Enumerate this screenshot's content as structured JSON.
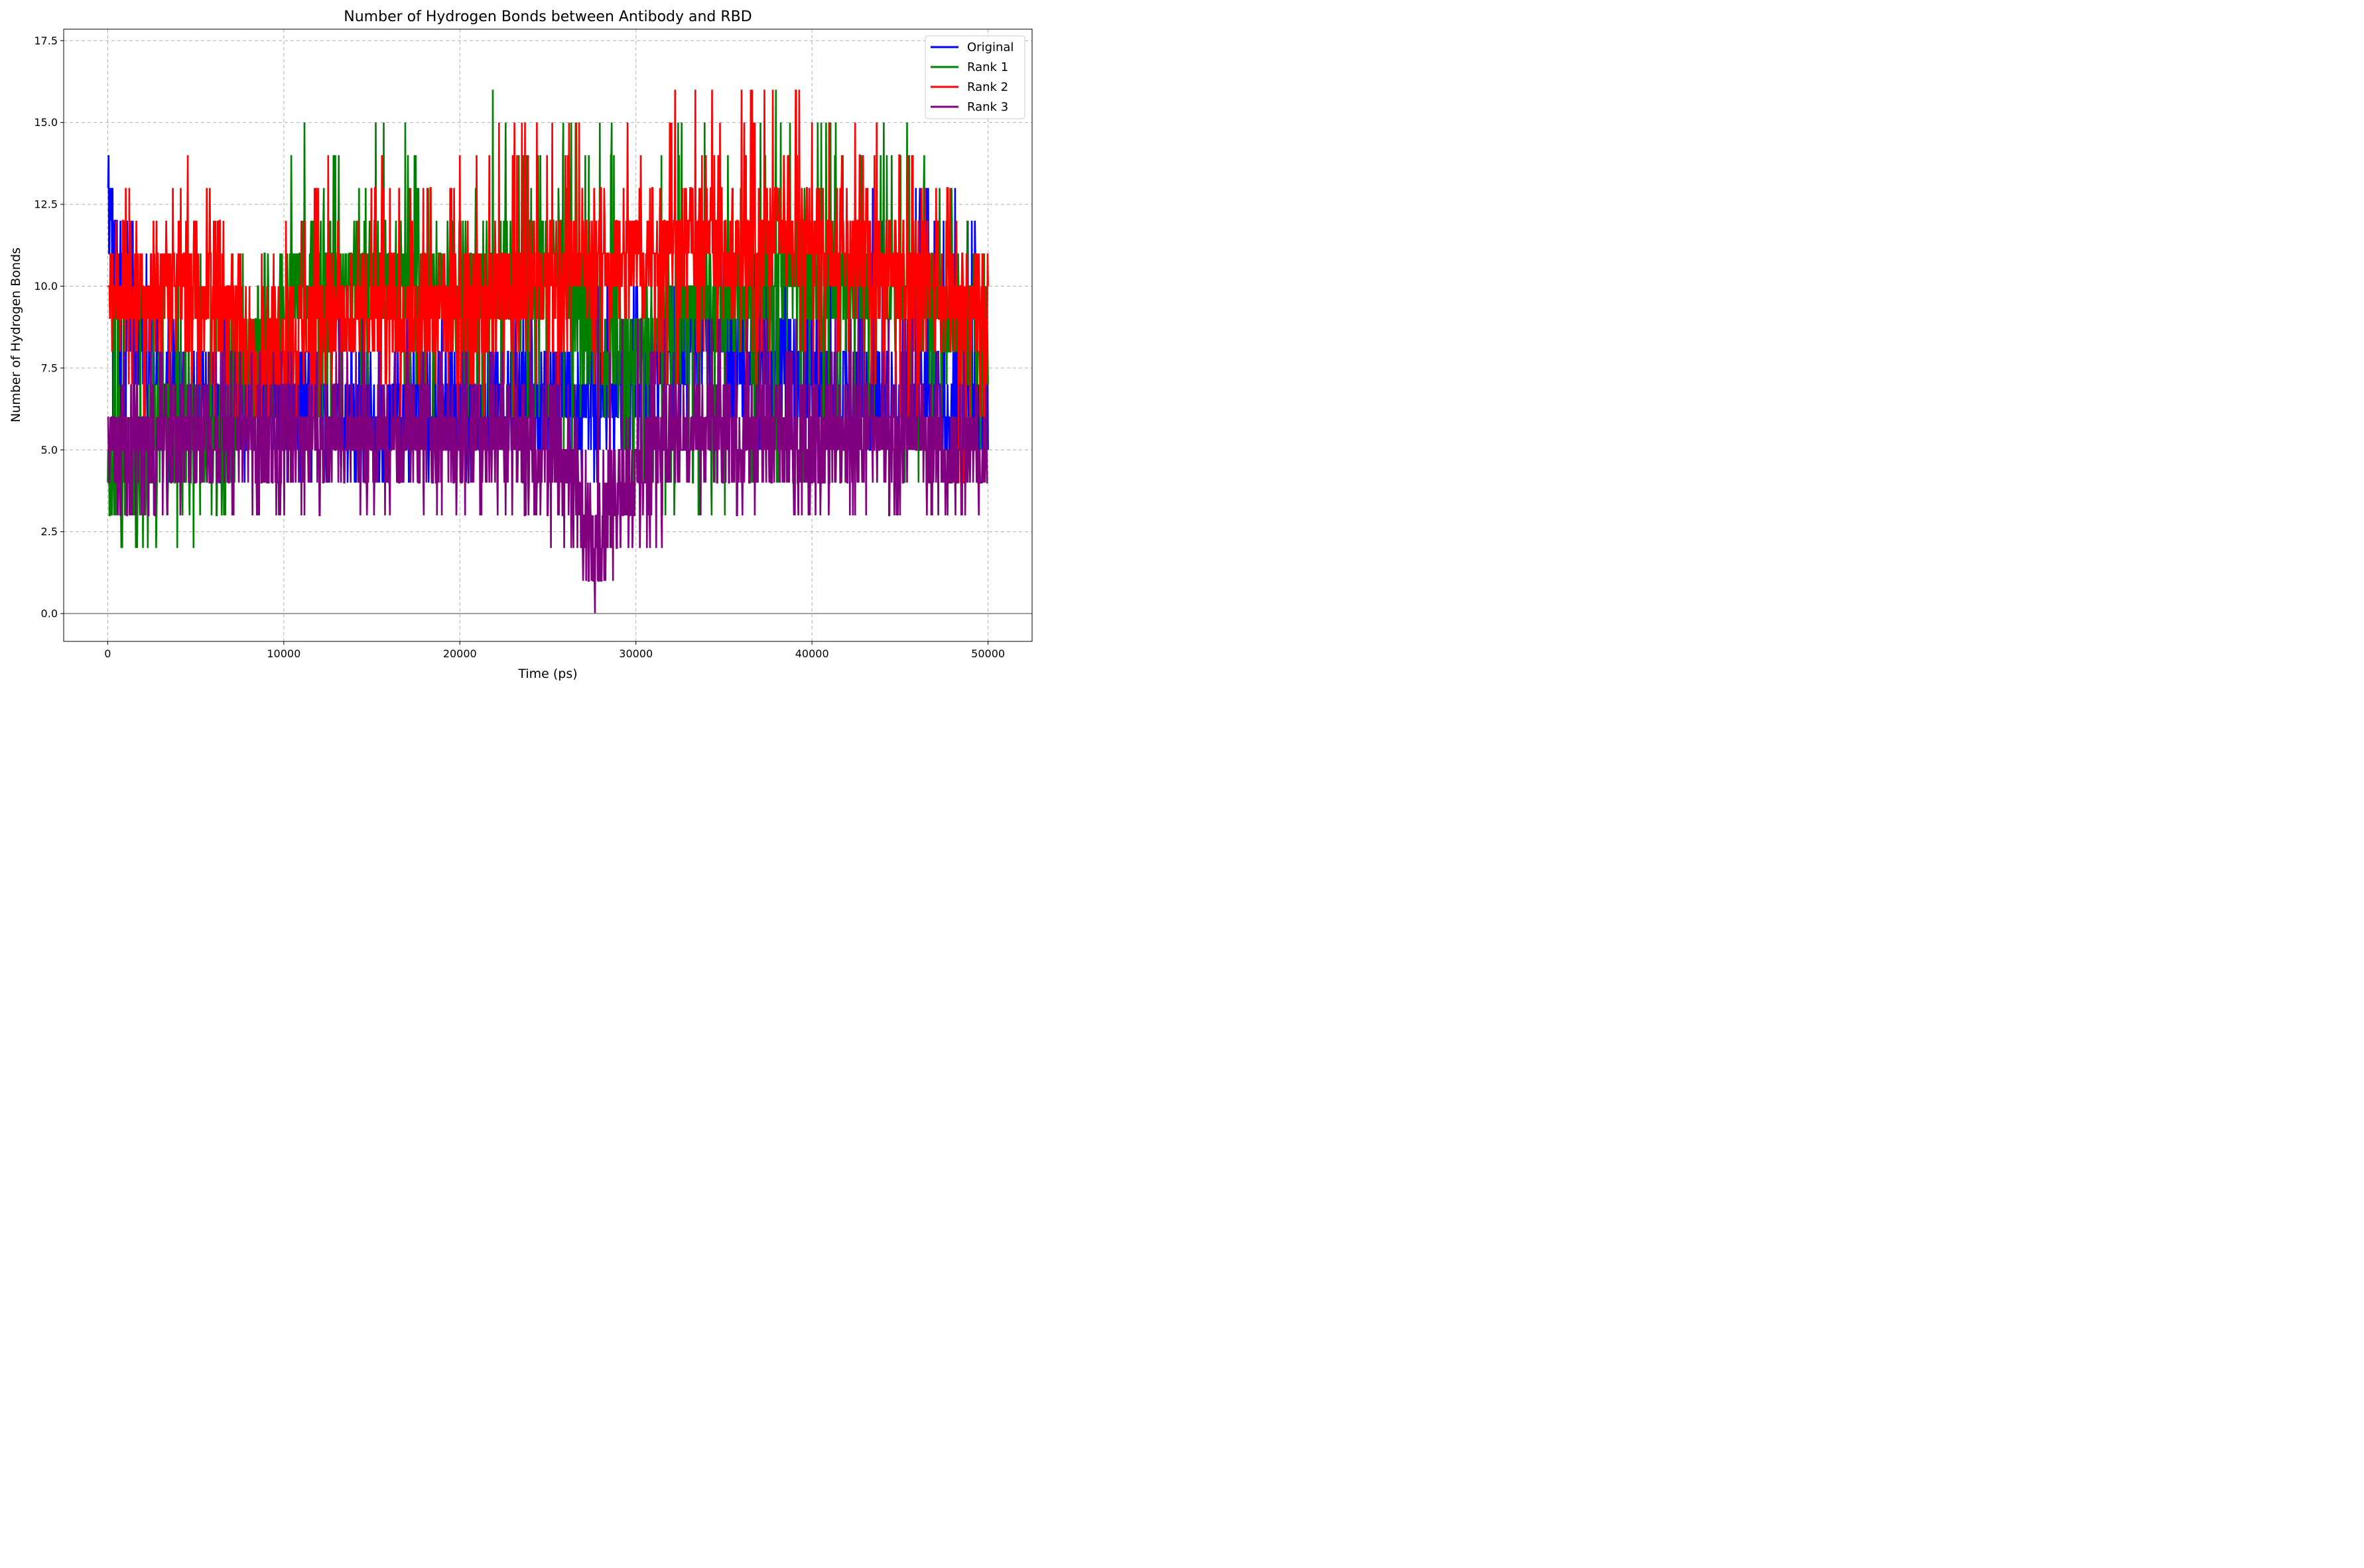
{
  "chart_data": {
    "type": "line",
    "title": "Number of Hydrogen Bonds between Antibody and RBD",
    "xlabel": "Time (ps)",
    "ylabel": "Number of Hydrogen Bonds",
    "xlim": [
      -2500,
      52500
    ],
    "ylim": [
      -0.85,
      17.85
    ],
    "xticks": [
      0,
      10000,
      20000,
      30000,
      40000,
      50000
    ],
    "xtick_labels": [
      "0",
      "10000",
      "20000",
      "30000",
      "40000",
      "50000"
    ],
    "yticks": [
      0,
      2.5,
      5,
      7.5,
      10,
      12.5,
      15,
      17.5
    ],
    "ytick_labels": [
      "0.0",
      "2.5",
      "5.0",
      "7.5",
      "10.0",
      "12.5",
      "15.0",
      "17.5"
    ],
    "grid": true,
    "legend_position": "top-right",
    "reference_line": {
      "y": 0,
      "color": "#808080"
    },
    "series": [
      {
        "name": "Original",
        "color": "#0000ff",
        "x": [
          0,
          1000,
          2000,
          3000,
          5000,
          8000,
          12000,
          16000,
          20000,
          22000,
          24000,
          26000,
          27000,
          28000,
          30000,
          32000,
          34000,
          36000,
          40000,
          44000,
          48000,
          50000
        ],
        "y": [
          12,
          10,
          8,
          7,
          6.5,
          6.5,
          6,
          6,
          6,
          6.5,
          6.5,
          7,
          6,
          6.5,
          7,
          8,
          8.5,
          8,
          7,
          6.5,
          6.5,
          6
        ],
        "ymin": [
          5,
          4,
          4,
          4,
          4,
          4,
          4,
          4,
          4,
          5,
          5,
          5,
          4,
          4,
          4,
          5,
          5,
          5,
          5,
          5,
          5,
          5
        ],
        "ymax": [
          14,
          13,
          12,
          10,
          10,
          9,
          9,
          9,
          10,
          9,
          9,
          12,
          10,
          10,
          10,
          11,
          11,
          11,
          11,
          13,
          13,
          11
        ]
      },
      {
        "name": "Rank 1",
        "color": "#008000",
        "x": [
          0,
          1000,
          2000,
          3000,
          5000,
          7000,
          9000,
          11000,
          12000,
          14000,
          16000,
          18000,
          20000,
          22000,
          24000,
          26000,
          28000,
          30000,
          32000,
          34000,
          36000,
          38000,
          40000,
          42000,
          44000,
          46000,
          48000,
          50000
        ],
        "y": [
          4,
          5,
          5,
          6,
          5,
          6,
          9,
          10,
          11,
          10,
          10.5,
          10,
          10,
          10,
          10.5,
          11,
          7.5,
          8,
          9,
          9.5,
          9.5,
          10,
          10.5,
          10,
          10,
          10,
          9,
          8
        ],
        "ymin": [
          2,
          2,
          2,
          2,
          2,
          3,
          5,
          6,
          6,
          6,
          6,
          6,
          6,
          5,
          5,
          5,
          5,
          3,
          3,
          3,
          3,
          4,
          4,
          4,
          4,
          4,
          4,
          5
        ],
        "ymax": [
          10,
          12,
          10,
          11,
          11,
          11,
          13,
          15,
          16,
          13,
          16,
          14,
          12,
          16,
          14,
          15,
          15,
          14,
          15,
          15,
          14,
          16,
          16,
          15,
          15,
          15,
          13,
          11
        ]
      },
      {
        "name": "Rank 2",
        "color": "#ff0000",
        "x": [
          0,
          1000,
          2000,
          3000,
          4000,
          5000,
          6000,
          7000,
          8000,
          10000,
          12000,
          14000,
          16000,
          18000,
          20000,
          22000,
          24000,
          26000,
          28000,
          30000,
          32000,
          34000,
          36000,
          38000,
          40000,
          42000,
          44000,
          46000,
          48000,
          50000
        ],
        "y": [
          10,
          10,
          9.5,
          10,
          10.5,
          10,
          9.5,
          9,
          8,
          8,
          9,
          9,
          9,
          9,
          9.5,
          10,
          10,
          10.5,
          11,
          11,
          11.5,
          11.5,
          11,
          12,
          11.5,
          11,
          10.5,
          10,
          9.5,
          9
        ],
        "ymin": [
          8,
          7,
          6,
          6,
          7,
          6,
          6,
          5,
          5,
          5,
          6,
          6,
          6,
          6,
          6,
          6,
          6,
          7,
          7,
          7,
          7,
          7,
          7,
          7,
          7,
          7,
          6,
          5,
          3,
          5
        ],
        "ymax": [
          12,
          13,
          13,
          13,
          15,
          15,
          13,
          12,
          11,
          12,
          14,
          13,
          14,
          13,
          14,
          15,
          15,
          15,
          16,
          15,
          16,
          16,
          16,
          17,
          16,
          15,
          15,
          14,
          13,
          11
        ]
      },
      {
        "name": "Rank 3",
        "color": "#800080",
        "x": [
          0,
          1000,
          2000,
          3000,
          5000,
          7000,
          9000,
          11000,
          13000,
          15000,
          17000,
          19000,
          21000,
          23000,
          25000,
          26000,
          27000,
          28000,
          29000,
          30000,
          31000,
          32000,
          34000,
          36000,
          38000,
          40000,
          42000,
          44000,
          46000,
          48000,
          50000
        ],
        "y": [
          5,
          5,
          5,
          5.5,
          5.5,
          5.5,
          5.5,
          5.5,
          5.5,
          5.5,
          5.5,
          5.5,
          5.5,
          5.5,
          5,
          4.5,
          3,
          2.5,
          4,
          4,
          5,
          5.5,
          5.5,
          5.5,
          5.5,
          5.5,
          5.5,
          5.5,
          5.5,
          5,
          5
        ],
        "ymin": [
          4,
          3,
          2,
          3,
          3,
          3,
          3,
          3,
          3,
          3,
          3,
          3,
          3,
          3,
          2,
          2,
          0,
          0,
          1,
          1,
          2,
          3,
          3,
          3,
          3,
          3,
          3,
          3,
          3,
          2,
          4
        ],
        "ymax": [
          7,
          8,
          8,
          8,
          8,
          8,
          8,
          8,
          9,
          9,
          9,
          8,
          9,
          8,
          8,
          8,
          8,
          10,
          9,
          10,
          9,
          9,
          9,
          9,
          9,
          9,
          9,
          9,
          9,
          9,
          7
        ]
      }
    ]
  }
}
